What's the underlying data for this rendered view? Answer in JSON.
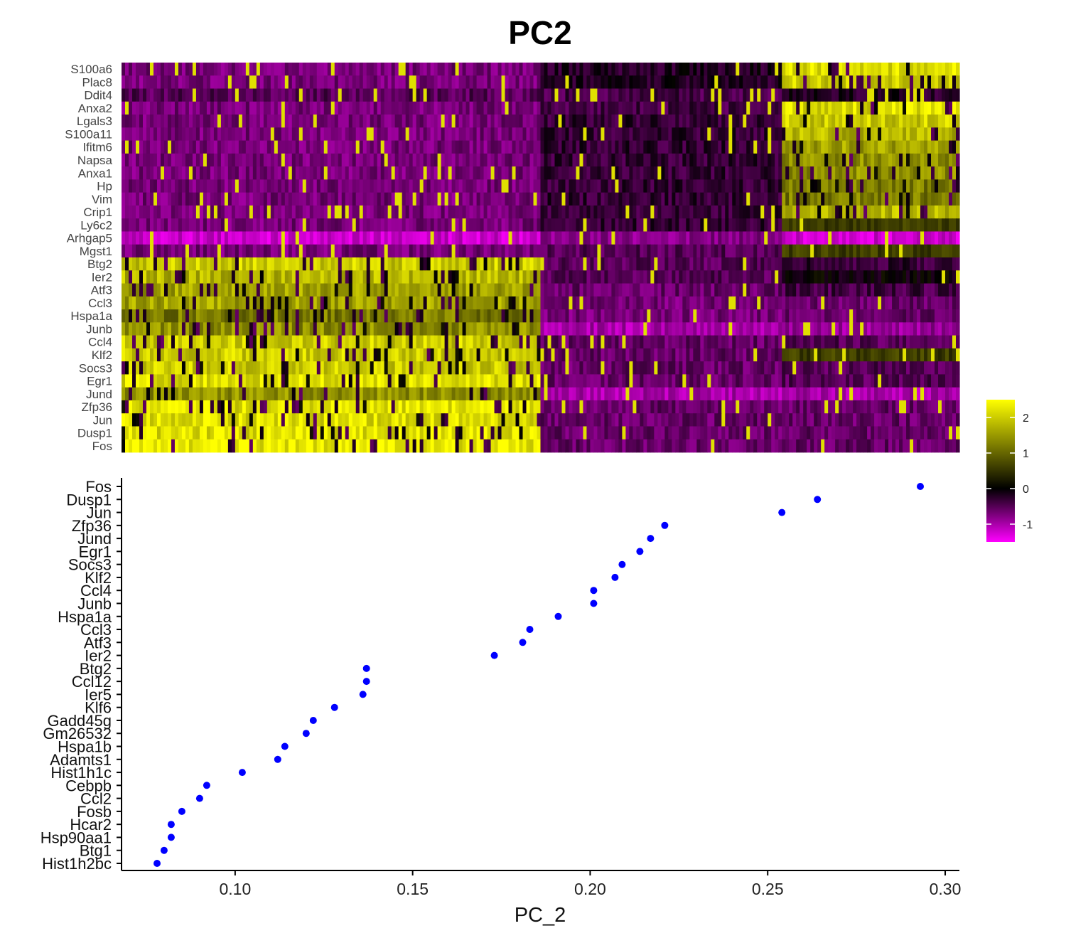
{
  "title": "PC2",
  "colors": {
    "point": "#0000ff",
    "low": "#ff00ff",
    "mid": "#000000",
    "high": "#ffff00",
    "axis": "#000000"
  },
  "chart_data": [
    {
      "type": "heatmap",
      "title": "PC2",
      "rows": [
        "S100a6",
        "Plac8",
        "Ddit4",
        "Anxa2",
        "Lgals3",
        "S100a11",
        "Ifitm6",
        "Napsa",
        "Anxa1",
        "Hp",
        "Vim",
        "Crip1",
        "Ly6c2",
        "Arhgap5",
        "Mgst1",
        "Btg2",
        "Ier2",
        "Atf3",
        "Ccl3",
        "Hspa1a",
        "Junb",
        "Ccl4",
        "Klf2",
        "Socs3",
        "Egr1",
        "Jund",
        "Zfp36",
        "Jun",
        "Dusp1",
        "Fos"
      ],
      "cell_groups": [
        "left",
        "middle",
        "right"
      ],
      "mean_scaled_expression": [
        [
          -0.7,
          -0.2,
          2.2
        ],
        [
          -0.7,
          -0.2,
          2.0
        ],
        [
          -0.5,
          -0.4,
          -0.2
        ],
        [
          -0.7,
          -0.4,
          2.2
        ],
        [
          -0.7,
          -0.3,
          2.0
        ],
        [
          -0.7,
          -0.3,
          1.8
        ],
        [
          -0.7,
          -0.3,
          1.6
        ],
        [
          -0.7,
          -0.3,
          1.4
        ],
        [
          -0.7,
          -0.3,
          1.4
        ],
        [
          -0.7,
          -0.3,
          1.2
        ],
        [
          -0.7,
          -0.3,
          1.2
        ],
        [
          -0.7,
          -0.3,
          1.8
        ],
        [
          -0.7,
          -0.3,
          0.6
        ],
        [
          -1.2,
          -0.8,
          -1.2
        ],
        [
          -0.7,
          -0.5,
          0.6
        ],
        [
          2.0,
          -0.5,
          -0.3
        ],
        [
          1.8,
          -0.5,
          0.0
        ],
        [
          1.6,
          -0.6,
          -0.4
        ],
        [
          1.6,
          -0.7,
          -0.6
        ],
        [
          1.2,
          -0.7,
          -0.6
        ],
        [
          1.4,
          -1.0,
          -0.9
        ],
        [
          2.0,
          -0.6,
          -0.5
        ],
        [
          2.0,
          -0.6,
          0.6
        ],
        [
          2.0,
          -0.6,
          -0.5
        ],
        [
          2.2,
          -0.6,
          -0.5
        ],
        [
          1.4,
          -1.0,
          -1.0
        ],
        [
          2.2,
          -0.6,
          -0.6
        ],
        [
          2.2,
          -0.6,
          -0.6
        ],
        [
          2.2,
          -0.6,
          -0.6
        ],
        [
          2.3,
          -0.6,
          -0.6
        ]
      ],
      "legend": {
        "ticks": [
          2,
          1,
          0,
          -1
        ],
        "range": [
          -1.5,
          2.5
        ],
        "colors": [
          "#ff00ff",
          "#000000",
          "#ffff00"
        ]
      }
    },
    {
      "type": "scatter",
      "xlabel": "PC_2",
      "xlim": [
        0.068,
        0.304
      ],
      "xticks": [
        "0.10",
        "0.15",
        "0.20",
        "0.25",
        "0.30"
      ],
      "xtick_values": [
        0.1,
        0.15,
        0.2,
        0.25,
        0.3
      ],
      "genes": [
        "Fos",
        "Dusp1",
        "Jun",
        "Zfp36",
        "Jund",
        "Egr1",
        "Socs3",
        "Klf2",
        "Ccl4",
        "Junb",
        "Hspa1a",
        "Ccl3",
        "Atf3",
        "Ier2",
        "Btg2",
        "Ccl12",
        "Ier5",
        "Klf6",
        "Gadd45g",
        "Gm26532",
        "Hspa1b",
        "Adamts1",
        "Hist1h1c",
        "Cebpb",
        "Ccl2",
        "Fosb",
        "Hcar2",
        "Hsp90aa1",
        "Btg1",
        "Hist1h2bc"
      ],
      "values": [
        0.293,
        0.264,
        0.254,
        0.221,
        0.217,
        0.214,
        0.209,
        0.207,
        0.201,
        0.201,
        0.191,
        0.183,
        0.181,
        0.173,
        0.137,
        0.137,
        0.136,
        0.128,
        0.122,
        0.12,
        0.114,
        0.112,
        0.102,
        0.092,
        0.09,
        0.085,
        0.082,
        0.082,
        0.08,
        0.078
      ]
    }
  ]
}
